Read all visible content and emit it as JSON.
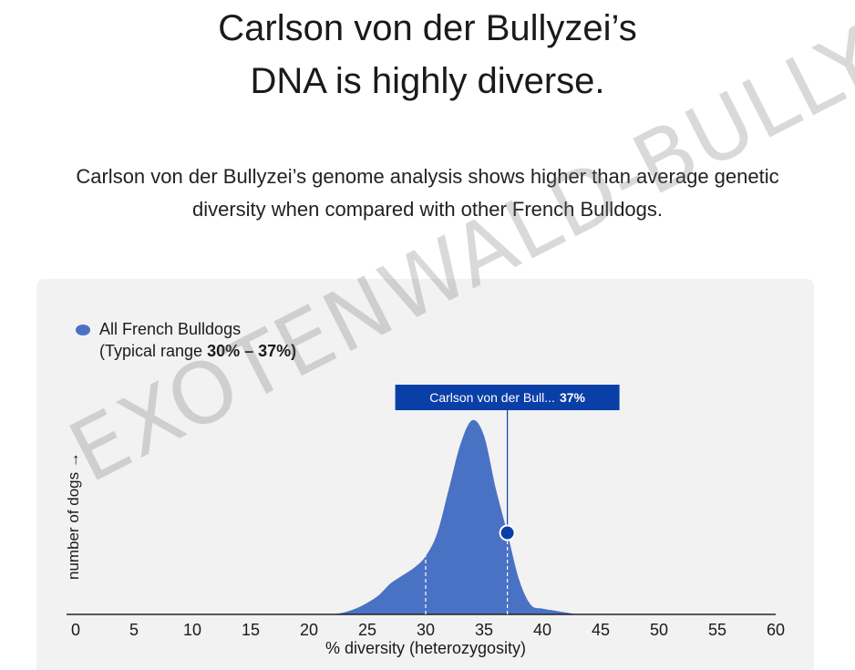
{
  "headline": {
    "line1": "Carlson von der Bullyzei’s",
    "line2": "DNA is highly diverse."
  },
  "subtext": "Carlson von der Bullyzei’s genome analysis shows higher than average genetic diversity when compared with other French Bulldogs.",
  "watermark": "EXOTENWALD-BULLYS.DE",
  "colors": {
    "fill": "#4a72c4",
    "marker": "#0a3fa8",
    "tooltip_bg": "#0a3fa8",
    "panel_bg": "#f2f2f2"
  },
  "chart_data": {
    "type": "area",
    "legend": {
      "label": "All French Bulldogs",
      "range_prefix": "(Typical range ",
      "range_value": "30% – 37%)",
      "placement": "top-left"
    },
    "ylabel": "number of dogs →",
    "xlabel": "% diversity (heterozygosity)",
    "xlim": [
      0,
      60
    ],
    "ylim": [
      0,
      1
    ],
    "xticks": [
      0,
      5,
      10,
      15,
      20,
      25,
      30,
      35,
      40,
      45,
      50,
      55,
      60
    ],
    "series": [
      {
        "name": "All French Bulldogs",
        "x": [
          22,
          23,
          24,
          25,
          26,
          27,
          28,
          29,
          30,
          31,
          32,
          33,
          34,
          35,
          36,
          37,
          38,
          39,
          40,
          41,
          42,
          43
        ],
        "y": [
          0.0,
          0.01,
          0.03,
          0.06,
          0.1,
          0.16,
          0.2,
          0.24,
          0.3,
          0.42,
          0.65,
          0.88,
          1.0,
          0.92,
          0.65,
          0.42,
          0.18,
          0.05,
          0.03,
          0.02,
          0.01,
          0.0
        ]
      }
    ],
    "reference_lines": [
      30,
      37
    ],
    "highlight": {
      "label": "Carlson von der Bull...",
      "value_label": "37%",
      "x": 37,
      "y": 0.42
    },
    "grid": false
  }
}
